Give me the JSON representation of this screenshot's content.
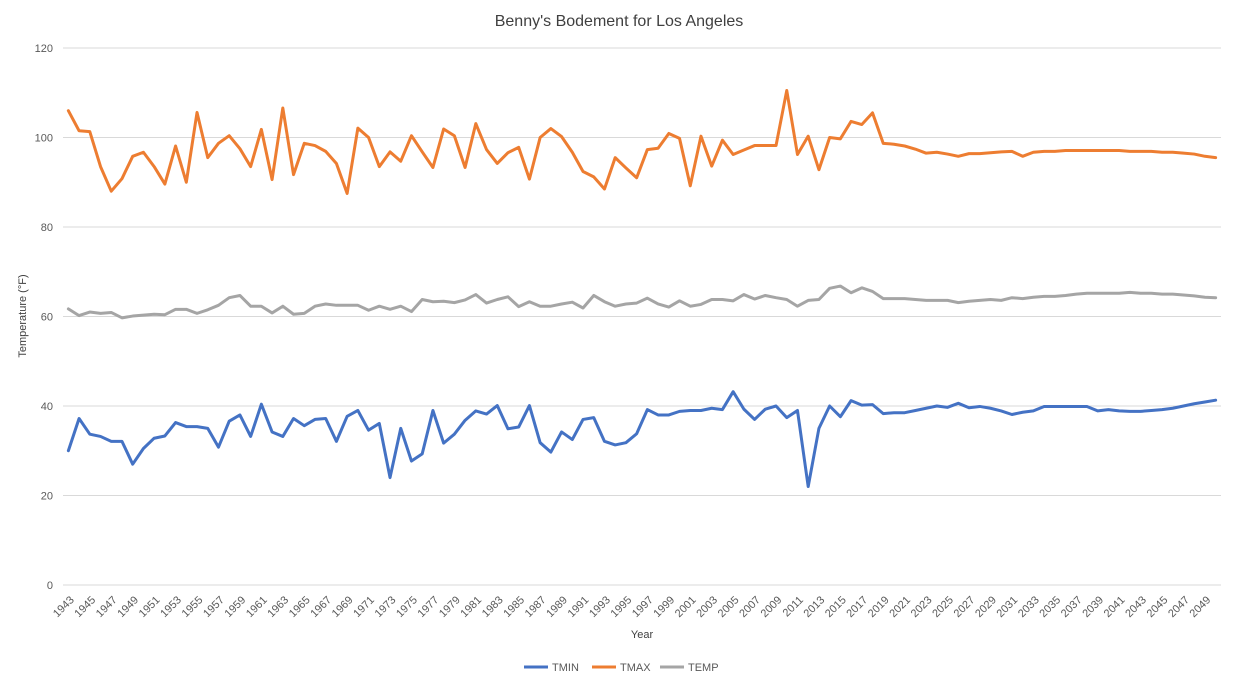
{
  "chart_data": {
    "type": "line",
    "title": "Benny's Bodement for Los Angeles",
    "xlabel": "Year",
    "ylabel": "Temperature (°F)",
    "ylim": [
      0,
      120
    ],
    "yticks": [
      0,
      20,
      40,
      60,
      80,
      100,
      120
    ],
    "grid": true,
    "legend_position": "bottom",
    "x": [
      1943,
      1944,
      1945,
      1946,
      1947,
      1948,
      1949,
      1950,
      1951,
      1952,
      1953,
      1954,
      1955,
      1956,
      1957,
      1958,
      1959,
      1960,
      1961,
      1962,
      1963,
      1964,
      1965,
      1966,
      1967,
      1968,
      1969,
      1970,
      1971,
      1972,
      1973,
      1974,
      1975,
      1976,
      1977,
      1978,
      1979,
      1980,
      1981,
      1982,
      1983,
      1984,
      1985,
      1986,
      1987,
      1988,
      1989,
      1990,
      1991,
      1992,
      1993,
      1994,
      1995,
      1996,
      1997,
      1998,
      1999,
      2000,
      2001,
      2002,
      2003,
      2004,
      2005,
      2006,
      2007,
      2008,
      2009,
      2010,
      2011,
      2012,
      2013,
      2014,
      2015,
      2016,
      2017,
      2018,
      2019,
      2020,
      2021,
      2022,
      2023,
      2024,
      2025,
      2026,
      2027,
      2028,
      2029,
      2030,
      2031,
      2032,
      2033,
      2034,
      2035,
      2036,
      2037,
      2038,
      2039,
      2040,
      2041,
      2042,
      2043,
      2044,
      2045,
      2046,
      2047,
      2048,
      2049,
      2050
    ],
    "x_tick_labels": [
      "1943",
      "1945",
      "1947",
      "1949",
      "1951",
      "1953",
      "1955",
      "1957",
      "1959",
      "1961",
      "1963",
      "1965",
      "1967",
      "1969",
      "1971",
      "1973",
      "1975",
      "1977",
      "1979",
      "1981",
      "1983",
      "1985",
      "1987",
      "1989",
      "1991",
      "1993",
      "1995",
      "1997",
      "1999",
      "2001",
      "2003",
      "2005",
      "2007",
      "2009",
      "2011",
      "2013",
      "2015",
      "2017",
      "2019",
      "2021",
      "2023",
      "2025",
      "2027",
      "2029",
      "2031",
      "2033",
      "2035",
      "2037",
      "2039",
      "2041",
      "2043",
      "2045",
      "2047",
      "2049"
    ],
    "series": [
      {
        "name": "TMIN",
        "color": "#4472c4",
        "values": [
          30,
          37.2,
          33.7,
          33.2,
          32.1,
          32.1,
          27,
          30.5,
          32.8,
          33.3,
          36.3,
          35.4,
          35.4,
          35,
          30.8,
          36.6,
          38,
          33.2,
          40.4,
          34.2,
          33.2,
          37.2,
          35.6,
          37,
          37.2,
          32.1,
          37.7,
          39,
          34.6,
          36.1,
          24,
          35,
          27.7,
          29.3,
          39,
          31.7,
          33.7,
          36.8,
          38.9,
          38.2,
          40.1,
          34.9,
          35.3,
          40.1,
          31.8,
          29.7,
          34.2,
          32.5,
          37,
          37.4,
          32.1,
          31.3,
          31.8,
          33.8,
          39.2,
          38,
          38,
          38.8,
          39,
          39,
          39.5,
          39.2,
          43.2,
          39.3,
          37,
          39.3,
          40,
          37.4,
          39,
          22,
          35,
          40,
          37.6,
          41.2,
          40.2,
          40.3,
          38.3,
          38.5,
          38.5,
          39,
          39.5,
          40,
          39.7,
          40.6,
          39.6,
          39.9,
          39.5,
          38.9,
          38.1,
          38.6,
          38.9,
          39.9,
          39.9,
          39.9,
          39.9,
          39.9,
          38.9,
          39.2,
          38.9,
          38.8,
          38.8,
          39,
          39.2,
          39.5,
          40,
          40.5,
          40.9,
          41.3
        ]
      },
      {
        "name": "TMAX",
        "color": "#ed7d31",
        "values": [
          106,
          101.5,
          101.3,
          93.5,
          88,
          90.8,
          95.8,
          96.7,
          93.5,
          89.6,
          98.1,
          90,
          105.6,
          95.5,
          98.7,
          100.4,
          97.5,
          93.5,
          101.8,
          90.6,
          106.6,
          91.7,
          98.7,
          98.2,
          96.9,
          94.2,
          87.5,
          102.1,
          100,
          93.5,
          96.8,
          94.7,
          100.4,
          96.8,
          93.3,
          101.9,
          100.4,
          93.3,
          103.1,
          97.3,
          94.2,
          96.6,
          97.8,
          90.7,
          100,
          102,
          100.2,
          96.7,
          92.4,
          91.2,
          88.5,
          95.5,
          93.2,
          91,
          97.3,
          97.6,
          100.9,
          99.8,
          89.2,
          100.3,
          93.6,
          99.4,
          96.2,
          97.2,
          98.2,
          98.2,
          98.2,
          110.5,
          96.2,
          100.3,
          92.8,
          100,
          99.7,
          103.6,
          102.9,
          105.5,
          98.7,
          98.5,
          98.1,
          97.4,
          96.5,
          96.7,
          96.3,
          95.8,
          96.4,
          96.4,
          96.6,
          96.8,
          96.9,
          95.8,
          96.7,
          96.9,
          96.9,
          97.1,
          97.1,
          97.1,
          97.1,
          97.1,
          97.1,
          96.9,
          96.9,
          96.9,
          96.7,
          96.7,
          96.5,
          96.3,
          95.8,
          95.5
        ]
      },
      {
        "name": "TEMP",
        "color": "#a5a5a5",
        "values": [
          61.7,
          60.2,
          61,
          60.7,
          60.9,
          59.7,
          60.1,
          60.3,
          60.5,
          60.4,
          61.6,
          61.6,
          60.7,
          61.5,
          62.5,
          64.2,
          64.7,
          62.3,
          62.3,
          60.8,
          62.3,
          60.5,
          60.7,
          62.3,
          62.8,
          62.5,
          62.5,
          62.5,
          61.4,
          62.3,
          61.6,
          62.3,
          61.1,
          63.8,
          63.3,
          63.4,
          63.1,
          63.7,
          64.9,
          63,
          63.8,
          64.4,
          62.2,
          63.3,
          62.3,
          62.3,
          62.8,
          63.2,
          61.9,
          64.7,
          63.3,
          62.3,
          62.8,
          63,
          64.1,
          62.8,
          62.1,
          63.5,
          62.3,
          62.7,
          63.8,
          63.8,
          63.5,
          64.9,
          63.9,
          64.7,
          64.2,
          63.8,
          62.3,
          63.6,
          63.8,
          66.3,
          66.8,
          65.3,
          66.4,
          65.6,
          64,
          64,
          64,
          63.8,
          63.6,
          63.6,
          63.6,
          63.1,
          63.4,
          63.6,
          63.8,
          63.6,
          64.2,
          64,
          64.3,
          64.5,
          64.5,
          64.7,
          65,
          65.2,
          65.2,
          65.2,
          65.2,
          65.4,
          65.2,
          65.2,
          65,
          65,
          64.8,
          64.6,
          64.3,
          64.2
        ]
      }
    ]
  }
}
